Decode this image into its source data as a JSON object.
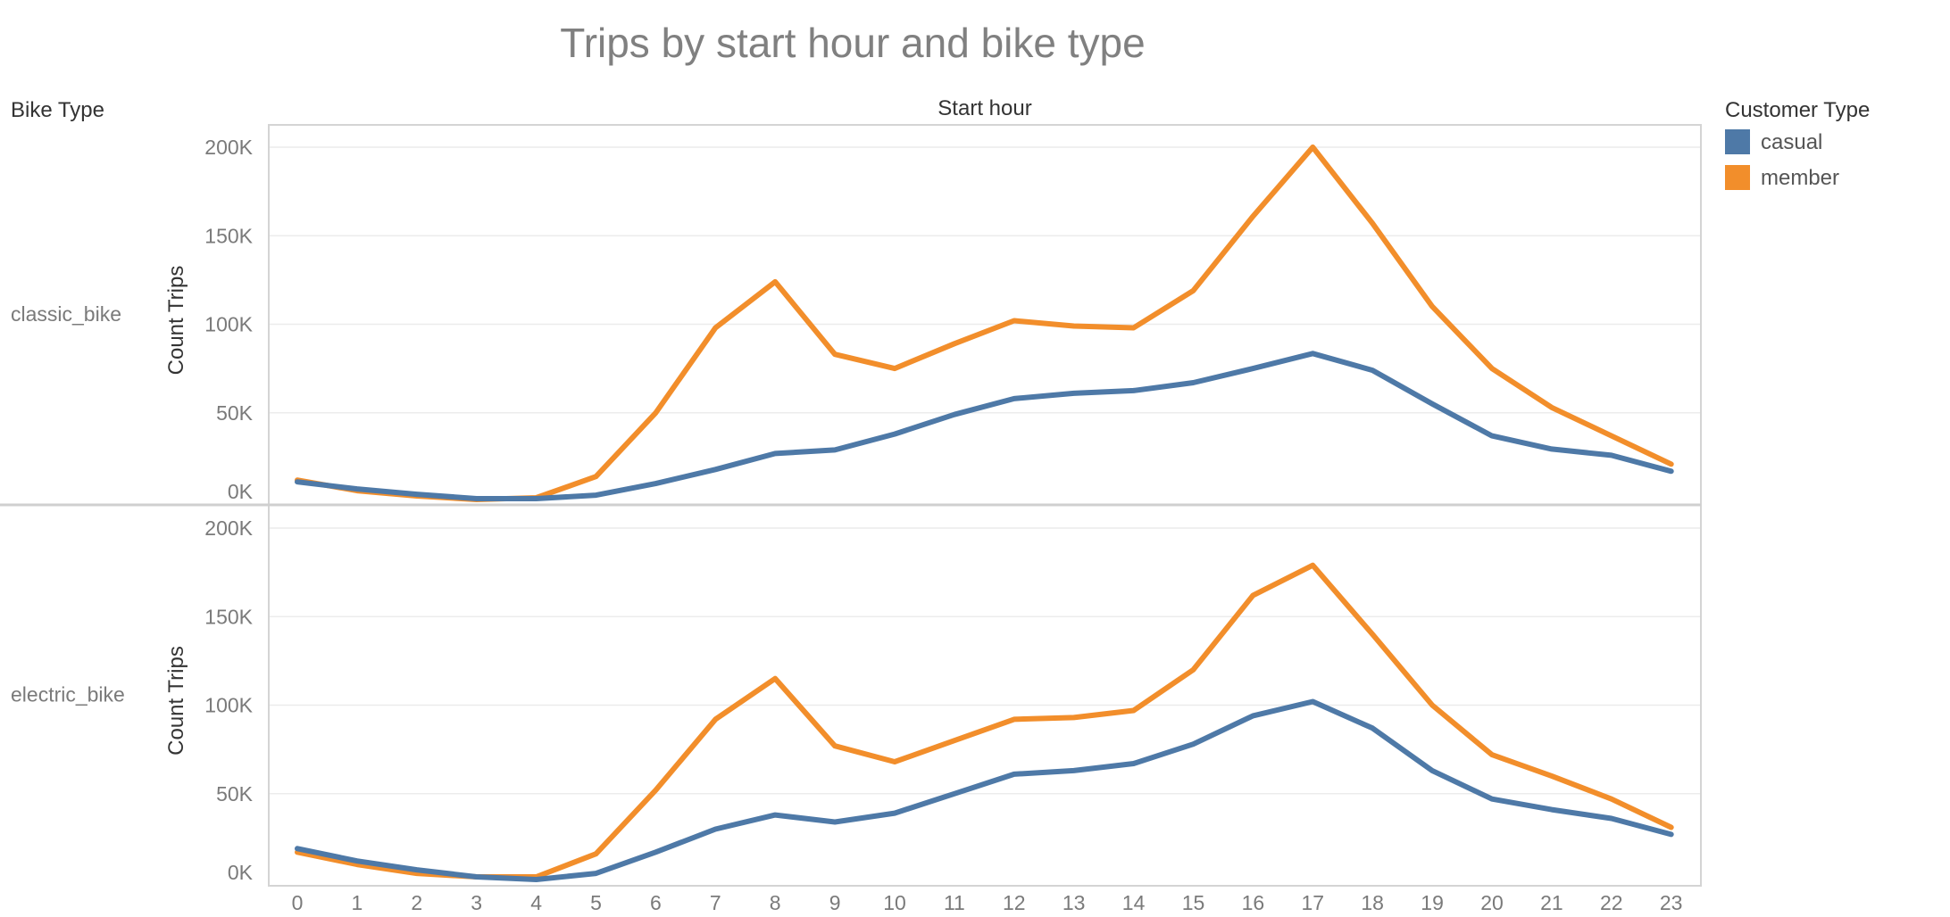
{
  "chart_data": {
    "type": "line",
    "title": "Trips by start hour and bike type",
    "column_header": "Start hour",
    "row_header": "Bike Type",
    "ylabel": "Count Trips",
    "ylim": [
      0,
      200000
    ],
    "y_ticks": [
      {
        "value": 0,
        "label": "0K"
      },
      {
        "value": 50000,
        "label": "50K"
      },
      {
        "value": 100000,
        "label": "100K"
      },
      {
        "value": 150000,
        "label": "150K"
      },
      {
        "value": 200000,
        "label": "200K"
      }
    ],
    "x": [
      0,
      1,
      2,
      3,
      4,
      5,
      6,
      7,
      8,
      9,
      10,
      11,
      12,
      13,
      14,
      15,
      16,
      17,
      18,
      19,
      20,
      21,
      22,
      23
    ],
    "grid": true,
    "legend": {
      "title": "Customer Type",
      "placement": "top-right",
      "items": [
        {
          "name": "casual",
          "color": "#4e79a7"
        },
        {
          "name": "member",
          "color": "#f28e2b"
        }
      ]
    },
    "facets": [
      {
        "name": "classic_bike",
        "series": [
          {
            "name": "casual",
            "color": "#4e79a7",
            "values": [
              11000,
              7000,
              4000,
              1500,
              1500,
              3500,
              10000,
              18000,
              27000,
              29000,
              38000,
              49000,
              58000,
              61000,
              62500,
              67000,
              75000,
              83500,
              74000,
              55000,
              37000,
              29500,
              26000,
              17000
            ]
          },
          {
            "name": "member",
            "color": "#f28e2b",
            "values": [
              12000,
              6000,
              3000,
              1000,
              2000,
              14000,
              50000,
              98000,
              124000,
              83000,
              75000,
              89000,
              102000,
              99000,
              98000,
              119000,
              161000,
              200000,
              157000,
              110000,
              75000,
              53000,
              37000,
              21000
            ]
          }
        ]
      },
      {
        "name": "electric_bike",
        "series": [
          {
            "name": "casual",
            "color": "#4e79a7",
            "values": [
              19000,
              12000,
              7000,
              3000,
              1500,
              5000,
              17000,
              30000,
              38000,
              34000,
              39000,
              50000,
              61000,
              63000,
              67000,
              78000,
              94000,
              102000,
              87000,
              63000,
              47000,
              41000,
              36000,
              27000
            ]
          },
          {
            "name": "member",
            "color": "#f28e2b",
            "values": [
              17000,
              10000,
              5000,
              3000,
              3000,
              16000,
              52000,
              92000,
              115000,
              77000,
              68000,
              80000,
              92000,
              93000,
              97000,
              120000,
              162000,
              179000,
              140000,
              100000,
              72000,
              60000,
              47000,
              31000
            ]
          }
        ]
      }
    ]
  }
}
